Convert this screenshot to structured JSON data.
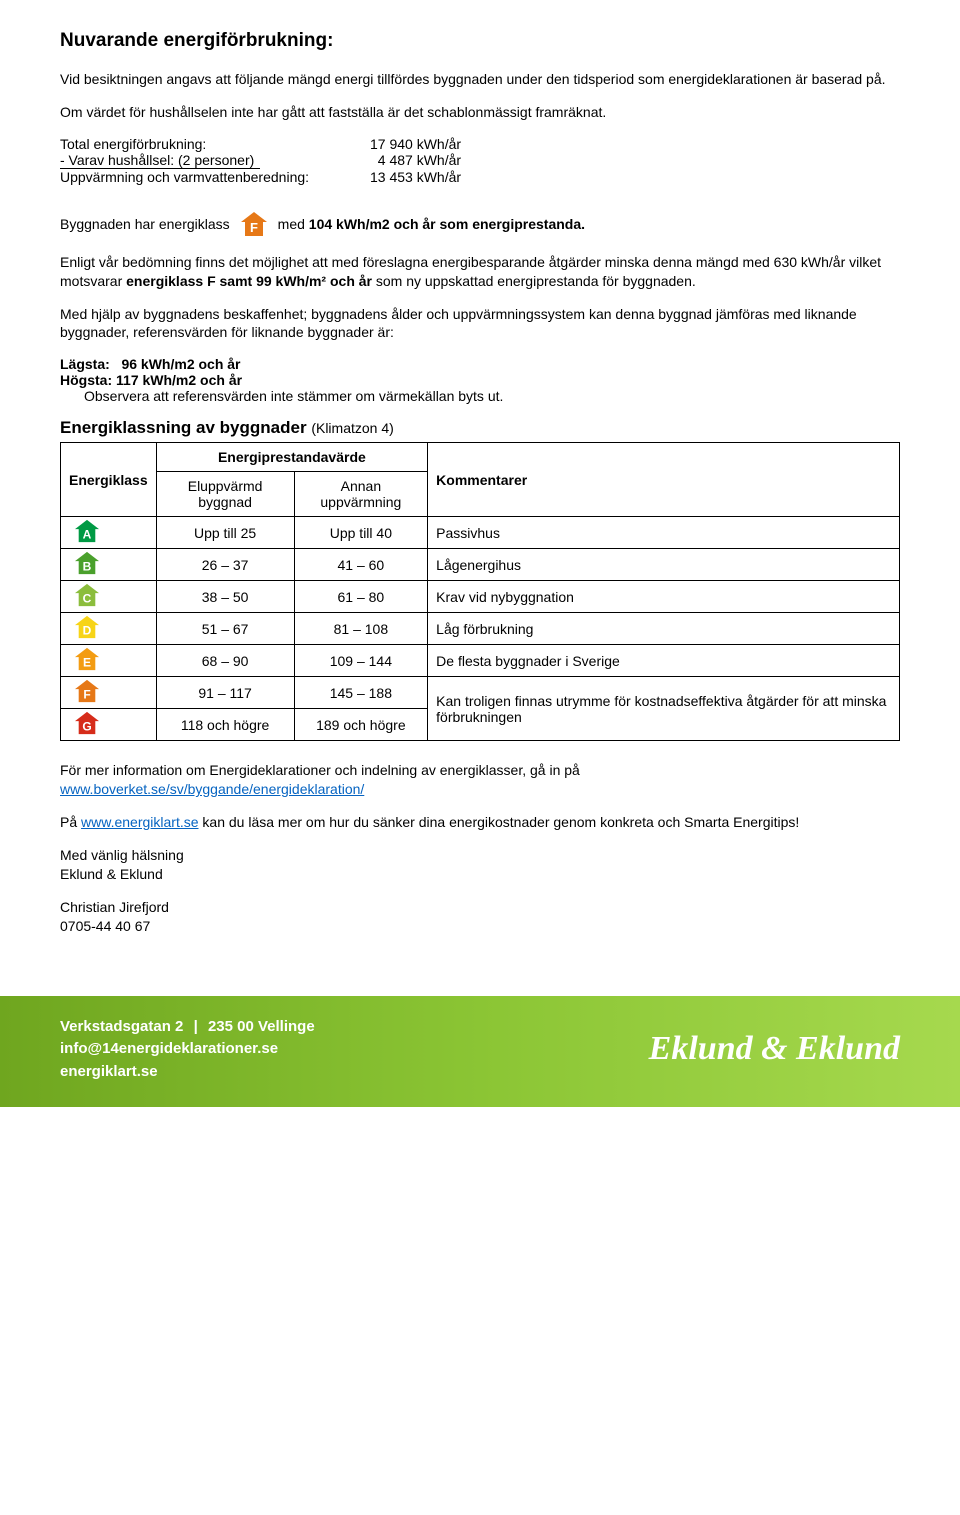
{
  "title": "Nuvarande energiförbrukning:",
  "intro1": "Vid besiktningen angavs att följande mängd energi tillfördes byggnaden under den tidsperiod som energideklarationen är baserad på.",
  "intro2": "Om värdet för hushållselen inte har gått att fastställa är det schablonmässigt framräknat.",
  "totals": {
    "row1_label": "Total energiförbrukning:",
    "row1_value": "17 940 kWh/år",
    "row2_label": "- Varav hushållsel: (2 personer)",
    "row2_value": "  4 487 kWh/år",
    "row3_label": "Uppvärmning och varmvattenberedning:",
    "row3_value": "13 453 kWh/år"
  },
  "classline": {
    "prefix": "Byggnaden har energiklass",
    "letter": "F",
    "badge_color": "#e67817",
    "suffix_prefix": "med ",
    "suffix_bold": "104 kWh/m2 och år som energiprestanda.",
    "suffix_after": ""
  },
  "assessment_p1": "Enligt vår bedömning finns det möjlighet att med föreslagna energibesparande åtgärder minska denna mängd med 630 kWh/år vilket motsvarar ",
  "assessment_bold": "energiklass F samt 99 kWh/m² och år",
  "assessment_p1b": " som ny uppskattad energiprestanda för byggnaden.",
  "assessment_p2": "Med hjälp av byggnadens beskaffenhet; byggnadens ålder och uppvärmningssystem kan denna byggnad jämföras med liknande byggnader, referensvärden för liknande byggnader är:",
  "ref": {
    "low_label": "Lägsta:",
    "low_value": "96 kWh/m2 och år",
    "high_label": "Högsta:",
    "high_value": "117 kWh/m2 och år",
    "note": "Observera att referensvärden inte stämmer om värmekällan byts ut."
  },
  "table": {
    "heading": "Energiklassning av byggnader",
    "heading_sub": "(Klimatzon 4)",
    "col_energiklass": "Energiklass",
    "col_prestandavarde": "Energiprestandavärde",
    "col_eluppvarmd": "Eluppvärmd byggnad",
    "col_annan": "Annan uppvärmning",
    "col_kommentar": "Kommentarer",
    "rows": [
      {
        "letter": "A",
        "color": "#009a44",
        "el": "Upp till 25",
        "annan": "Upp till 40",
        "kommentar": "Passivhus"
      },
      {
        "letter": "B",
        "color": "#4aa02c",
        "el": "26 – 37",
        "annan": "41 – 60",
        "kommentar": "Lågenergihus"
      },
      {
        "letter": "C",
        "color": "#8bbd3c",
        "el": "38 – 50",
        "annan": "61 – 80",
        "kommentar": "Krav vid nybyggnation"
      },
      {
        "letter": "D",
        "color": "#f7d417",
        "el": "51 – 67",
        "annan": "81 – 108",
        "kommentar": "Låg förbrukning"
      },
      {
        "letter": "E",
        "color": "#f39c12",
        "el": "68 – 90",
        "annan": "109 – 144",
        "kommentar": "De flesta byggnader i Sverige"
      },
      {
        "letter": "F",
        "color": "#e67817",
        "el": "91 – 117",
        "annan": "145 – 188",
        "kommentar": "Kan troligen finnas utrymme för kostnadseffektiva åtgärder för att minska förbrukningen"
      },
      {
        "letter": "G",
        "color": "#d62c1a",
        "el": "118 och högre",
        "annan": "189 och högre",
        "kommentar": ""
      }
    ]
  },
  "more_info_prefix": "För mer information om Energideklarationer och indelning av energiklasser, gå in på ",
  "more_info_link": "www.boverket.se/sv/byggande/energideklaration/",
  "energiklart_prefix": "På ",
  "energiklart_link": "www.energiklart.se",
  "energiklart_suffix": " kan du läsa mer om hur du sänker dina energikostnader genom konkreta och Smarta Energitips!",
  "signoff": {
    "greeting": "Med vänlig hälsning",
    "company": "Eklund & Eklund",
    "name": "Christian Jirefjord",
    "phone": "0705-44 40 67"
  },
  "footer": {
    "address_street": "Verkstadsgatan 2",
    "address_city": "235 00 Vellinge",
    "email": "info@14energideklarationer.se",
    "web": "energiklart.se",
    "brand": "Eklund & Eklund"
  }
}
